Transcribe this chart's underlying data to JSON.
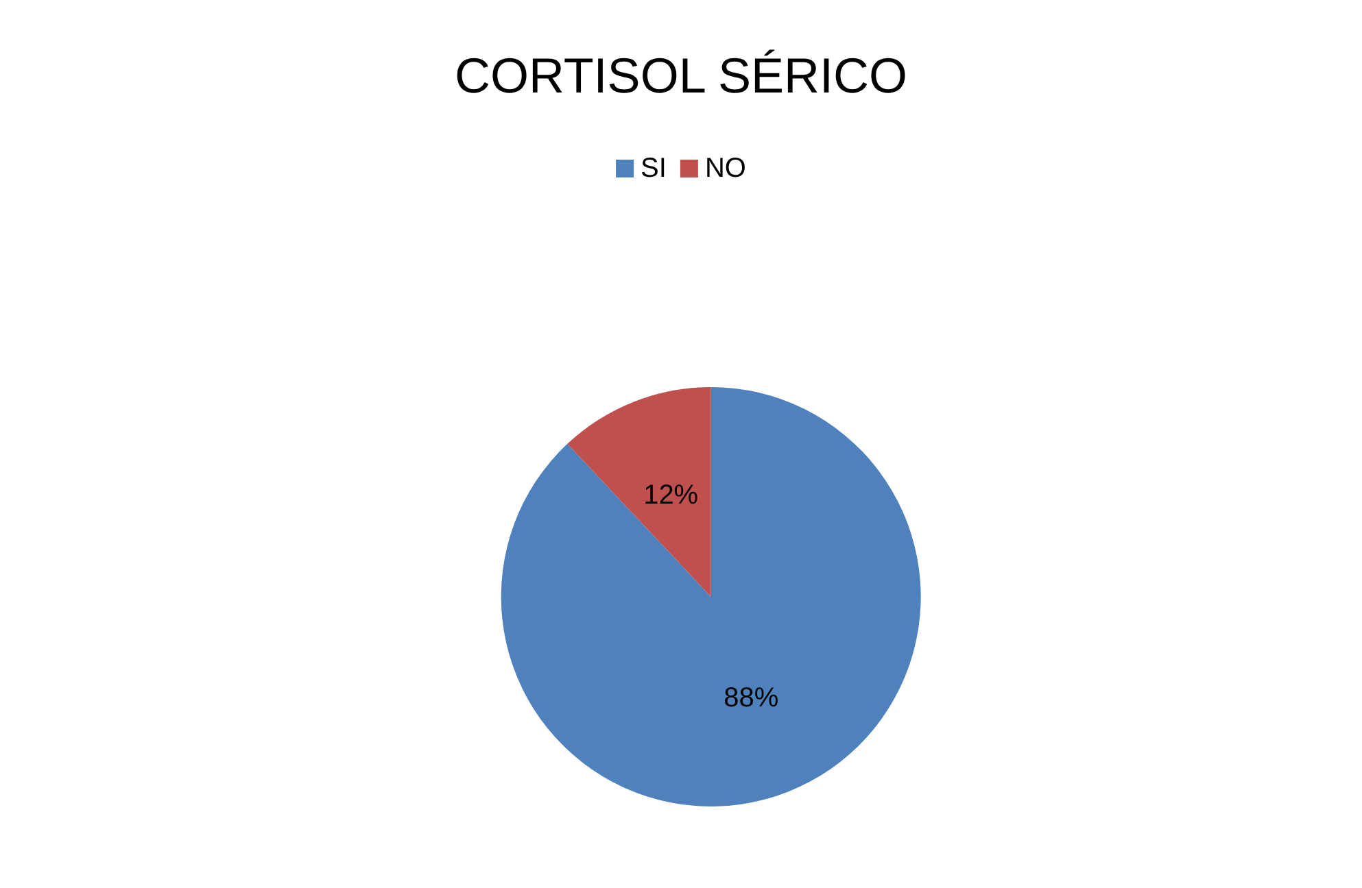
{
  "chart_data": {
    "type": "pie",
    "title": "CORTISOL SÉRICO",
    "categories": [
      "SI",
      "NO"
    ],
    "values": [
      88,
      12
    ],
    "colors": [
      "#4f81bd",
      "#c0504d"
    ],
    "value_labels": [
      "88%",
      "12%"
    ],
    "legend": "top"
  }
}
